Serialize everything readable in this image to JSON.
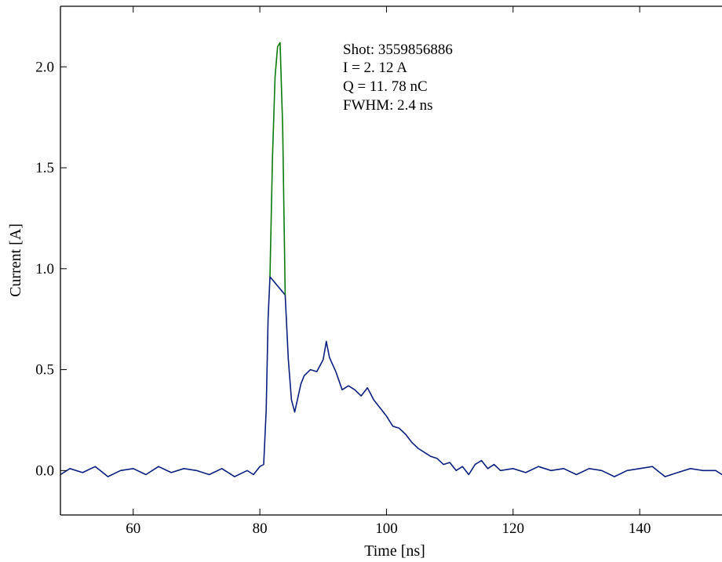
{
  "chart_data": {
    "type": "line",
    "xlabel": "Time [ns]",
    "ylabel": "Current [A]",
    "xlim": [
      48.5,
      153
    ],
    "ylim": [
      -0.22,
      2.3
    ],
    "x_ticks": [
      60,
      80,
      100,
      120,
      140
    ],
    "x_tick_labels": [
      "60",
      "80",
      "100",
      "120",
      "140"
    ],
    "y_ticks": [
      0.0,
      0.5,
      1.0,
      1.5,
      2.0
    ],
    "y_tick_labels": [
      "0.0",
      "0.5",
      "1.0",
      "1.5",
      "2.0"
    ],
    "grid": false,
    "colors": {
      "baseline": "#0a1f7f",
      "peak": "#0a7a0a"
    },
    "annotations": [
      "Shot: 3559856886",
      "I = 2. 12 A",
      "Q = 11. 78 nC",
      "FWHM: 2.4 ns"
    ],
    "series": [
      {
        "color": "#0a1f7f",
        "x": [
          48.5,
          50,
          52,
          54,
          56,
          58,
          60,
          62,
          64,
          66,
          68,
          70,
          72,
          74,
          76,
          78,
          79,
          80,
          80.6,
          81,
          81.3,
          81.6,
          84.0,
          84.5,
          85.0,
          85.5,
          86.0,
          86.5,
          87,
          88,
          89,
          90,
          90.5,
          91,
          92,
          93,
          94,
          95,
          96,
          97,
          98,
          99,
          100,
          101,
          102,
          103,
          104,
          105,
          106,
          107,
          108,
          109,
          110,
          111,
          112,
          113,
          114,
          115,
          116,
          117,
          118,
          120,
          122,
          124,
          126,
          128,
          130,
          132,
          134,
          136,
          138,
          140,
          142,
          144,
          146,
          148,
          150,
          152,
          153
        ],
        "y": [
          -0.02,
          0.01,
          -0.01,
          0.02,
          -0.03,
          0.0,
          0.01,
          -0.02,
          0.02,
          -0.01,
          0.01,
          0.0,
          -0.02,
          0.01,
          -0.03,
          0.0,
          -0.02,
          0.02,
          0.03,
          0.3,
          0.75,
          0.96,
          0.87,
          0.55,
          0.35,
          0.29,
          0.36,
          0.43,
          0.47,
          0.5,
          0.49,
          0.55,
          0.64,
          0.56,
          0.49,
          0.4,
          0.42,
          0.4,
          0.37,
          0.41,
          0.35,
          0.31,
          0.27,
          0.22,
          0.21,
          0.18,
          0.14,
          0.11,
          0.09,
          0.07,
          0.06,
          0.03,
          0.04,
          0.0,
          0.02,
          -0.02,
          0.03,
          0.05,
          0.01,
          0.03,
          0.0,
          0.01,
          -0.01,
          0.02,
          0.0,
          0.01,
          -0.02,
          0.01,
          0.0,
          -0.03,
          0.0,
          0.01,
          0.02,
          -0.03,
          -0.01,
          0.01,
          0.0,
          0.0,
          -0.02
        ]
      },
      {
        "color": "#0a7a0a",
        "x": [
          81.6,
          82.0,
          82.4,
          82.8,
          83.2,
          83.6,
          84.0
        ],
        "y": [
          0.96,
          1.55,
          1.95,
          2.1,
          2.12,
          1.7,
          0.87
        ]
      }
    ]
  }
}
